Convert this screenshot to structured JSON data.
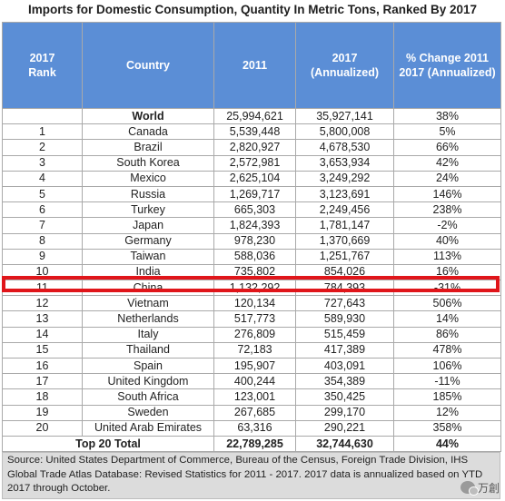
{
  "title": "Imports for Domestic Consumption, Quantity In Metric Tons, Ranked By 2017",
  "headers": {
    "rank_line1": "2017",
    "rank_line2": "Rank",
    "country": "Country",
    "y2011": "2011",
    "y2017_line1": "2017",
    "y2017_line2": "(Annualized)",
    "change_line1": "% Change 2011",
    "change_line2": "2017 (Annualized)"
  },
  "rows": [
    {
      "rank": "",
      "country": "World",
      "v2011": "25,994,621",
      "v2017": "35,927,141",
      "change": "38%"
    },
    {
      "rank": "1",
      "country": "Canada",
      "v2011": "5,539,448",
      "v2017": "5,800,008",
      "change": "5%"
    },
    {
      "rank": "2",
      "country": "Brazil",
      "v2011": "2,820,927",
      "v2017": "4,678,530",
      "change": "66%"
    },
    {
      "rank": "3",
      "country": "South Korea",
      "v2011": "2,572,981",
      "v2017": "3,653,934",
      "change": "42%"
    },
    {
      "rank": "4",
      "country": "Mexico",
      "v2011": "2,625,104",
      "v2017": "3,249,292",
      "change": "24%"
    },
    {
      "rank": "5",
      "country": "Russia",
      "v2011": "1,269,717",
      "v2017": "3,123,691",
      "change": "146%"
    },
    {
      "rank": "6",
      "country": "Turkey",
      "v2011": "665,303",
      "v2017": "2,249,456",
      "change": "238%"
    },
    {
      "rank": "7",
      "country": "Japan",
      "v2011": "1,824,393",
      "v2017": "1,781,147",
      "change": "-2%"
    },
    {
      "rank": "8",
      "country": "Germany",
      "v2011": "978,230",
      "v2017": "1,370,669",
      "change": "40%"
    },
    {
      "rank": "9",
      "country": "Taiwan",
      "v2011": "588,036",
      "v2017": "1,251,767",
      "change": "113%"
    },
    {
      "rank": "10",
      "country": "India",
      "v2011": "735,802",
      "v2017": "854,026",
      "change": "16%"
    },
    {
      "rank": "11",
      "country": "China",
      "v2011": "1,132,292",
      "v2017": "784,393",
      "change": "-31%"
    },
    {
      "rank": "12",
      "country": "Vietnam",
      "v2011": "120,134",
      "v2017": "727,643",
      "change": "506%"
    },
    {
      "rank": "13",
      "country": "Netherlands",
      "v2011": "517,773",
      "v2017": "589,930",
      "change": "14%"
    },
    {
      "rank": "14",
      "country": "Italy",
      "v2011": "276,809",
      "v2017": "515,459",
      "change": "86%"
    },
    {
      "rank": "15",
      "country": "Thailand",
      "v2011": "72,183",
      "v2017": "417,389",
      "change": "478%"
    },
    {
      "rank": "16",
      "country": "Spain",
      "v2011": "195,907",
      "v2017": "403,091",
      "change": "106%"
    },
    {
      "rank": "17",
      "country": "United Kingdom",
      "v2011": "400,244",
      "v2017": "354,389",
      "change": "-11%"
    },
    {
      "rank": "18",
      "country": "South Africa",
      "v2011": "123,001",
      "v2017": "350,425",
      "change": "185%"
    },
    {
      "rank": "19",
      "country": "Sweden",
      "v2011": "267,685",
      "v2017": "299,170",
      "change": "12%"
    },
    {
      "rank": "20",
      "country": "United Arab Emirates",
      "v2011": "63,316",
      "v2017": "290,221",
      "change": "358%"
    }
  ],
  "total": {
    "label": "Top 20 Total",
    "v2011": "22,789,285",
    "v2017": "32,744,630",
    "change": "44%"
  },
  "source": "Source: United States Department of Commerce, Bureau of the Census, Foreign Trade Division, IHS Global Trade Atlas Database: Revised Statistics for 2011 - 2017. 2017 data is annualized based on YTD 2017 through October.",
  "watermark": "万創",
  "colors": {
    "header_bg": "#5b8ed6",
    "highlight": "#e0151a",
    "source_bg": "#dcdcdc"
  }
}
